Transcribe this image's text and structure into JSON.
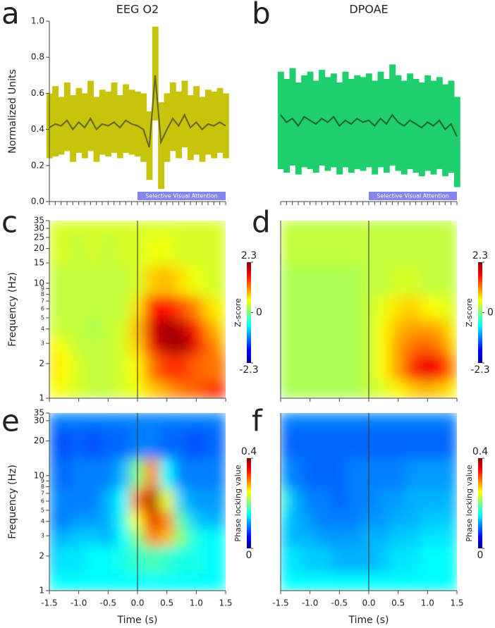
{
  "chart_data": [
    {
      "panel": "a",
      "type": "band-line",
      "title": "EEG O2",
      "ylabel": "Normalized Units",
      "color": "#c8c40c",
      "line_color": "#6a6a20",
      "x": [
        -1.5,
        -1.4,
        -1.3,
        -1.2,
        -1.1,
        -1.0,
        -0.9,
        -0.8,
        -0.7,
        -0.6,
        -0.5,
        -0.4,
        -0.3,
        -0.2,
        -0.1,
        0.0,
        0.1,
        0.2,
        0.3,
        0.4,
        0.5,
        0.6,
        0.7,
        0.8,
        0.9,
        1.0,
        1.1,
        1.2,
        1.3,
        1.4,
        1.5
      ],
      "values": [
        0.41,
        0.43,
        0.42,
        0.45,
        0.4,
        0.44,
        0.41,
        0.46,
        0.4,
        0.43,
        0.42,
        0.44,
        0.41,
        0.45,
        0.43,
        0.42,
        0.4,
        0.3,
        0.7,
        0.33,
        0.4,
        0.46,
        0.42,
        0.48,
        0.41,
        0.44,
        0.4,
        0.43,
        0.42,
        0.44,
        0.42
      ],
      "upper": [
        0.6,
        0.64,
        0.58,
        0.66,
        0.59,
        0.63,
        0.6,
        0.67,
        0.58,
        0.62,
        0.61,
        0.66,
        0.59,
        0.65,
        0.62,
        0.61,
        0.6,
        0.5,
        0.97,
        0.55,
        0.6,
        0.66,
        0.61,
        0.67,
        0.59,
        0.64,
        0.58,
        0.62,
        0.61,
        0.63,
        0.6
      ],
      "lower": [
        0.24,
        0.25,
        0.26,
        0.28,
        0.22,
        0.27,
        0.24,
        0.28,
        0.22,
        0.26,
        0.25,
        0.27,
        0.24,
        0.27,
        0.26,
        0.25,
        0.22,
        0.12,
        0.45,
        0.07,
        0.22,
        0.28,
        0.24,
        0.3,
        0.23,
        0.26,
        0.22,
        0.26,
        0.24,
        0.27,
        0.24
      ],
      "xlim": [
        -1.5,
        1.5
      ],
      "xticks": [
        -1.5,
        -1.4,
        -1.3,
        -1.2,
        -1.1,
        -1.0,
        -0.9,
        -0.8,
        -0.7,
        -0.6,
        -0.5,
        -0.4,
        -0.3,
        -0.2,
        -0.1,
        0.0,
        0.1,
        0.2,
        0.3,
        0.4,
        0.5,
        0.6,
        0.7,
        0.8,
        0.9,
        1.0,
        1.1,
        1.2,
        1.3,
        1.4,
        1.5
      ],
      "xtick_labels": false,
      "ylim": [
        0,
        1
      ],
      "yticks": [
        {
          "value": 0,
          "label": "0.0"
        },
        0.2,
        0.4,
        0.6,
        0.8,
        {
          "value": 1,
          "label": "1.0"
        }
      ],
      "annotation": {
        "text": "Selective Visual Attention",
        "x": [
          0,
          1.5
        ]
      }
    },
    {
      "panel": "b",
      "type": "band-line",
      "title": "DPOAE",
      "color": "#1fcf6e",
      "line_color": "#1a6a35",
      "x": [
        -1.5,
        -1.4,
        -1.3,
        -1.2,
        -1.1,
        -1.0,
        -0.9,
        -0.8,
        -0.7,
        -0.6,
        -0.5,
        -0.4,
        -0.3,
        -0.2,
        -0.1,
        0.0,
        0.1,
        0.2,
        0.3,
        0.4,
        0.5,
        0.6,
        0.7,
        0.8,
        0.9,
        1.0,
        1.1,
        1.2,
        1.3,
        1.4,
        1.5
      ],
      "values": [
        0.48,
        0.44,
        0.46,
        0.42,
        0.47,
        0.45,
        0.43,
        0.46,
        0.44,
        0.47,
        0.42,
        0.45,
        0.43,
        0.46,
        0.44,
        0.45,
        0.42,
        0.46,
        0.43,
        0.48,
        0.44,
        0.42,
        0.45,
        0.43,
        0.41,
        0.44,
        0.42,
        0.45,
        0.4,
        0.43,
        0.36
      ],
      "upper": [
        0.72,
        0.68,
        0.74,
        0.66,
        0.7,
        0.72,
        0.67,
        0.73,
        0.69,
        0.71,
        0.66,
        0.72,
        0.68,
        0.7,
        0.69,
        0.71,
        0.67,
        0.72,
        0.68,
        0.76,
        0.7,
        0.67,
        0.71,
        0.68,
        0.66,
        0.7,
        0.67,
        0.69,
        0.65,
        0.67,
        0.58
      ],
      "lower": [
        0.18,
        0.16,
        0.2,
        0.15,
        0.19,
        0.18,
        0.16,
        0.2,
        0.17,
        0.19,
        0.15,
        0.19,
        0.16,
        0.18,
        0.17,
        0.19,
        0.15,
        0.19,
        0.16,
        0.2,
        0.17,
        0.15,
        0.18,
        0.16,
        0.14,
        0.17,
        0.15,
        0.18,
        0.14,
        0.16,
        0.08
      ],
      "xlim": [
        -1.5,
        1.5
      ],
      "xticks": [
        -1.5,
        -1.4,
        -1.3,
        -1.2,
        -1.1,
        -1.0,
        -0.9,
        -0.8,
        -0.7,
        -0.6,
        -0.5,
        -0.4,
        -0.3,
        -0.2,
        -0.1,
        0.0,
        0.1,
        0.2,
        0.3,
        0.4,
        0.5,
        0.6,
        0.7,
        0.8,
        0.9,
        1.0,
        1.1,
        1.2,
        1.3,
        1.4,
        1.5
      ],
      "xtick_labels": false,
      "ylim": [
        0,
        1
      ],
      "annotation": {
        "text": "Selective Visual Attention",
        "x": [
          0,
          1.5
        ]
      }
    },
    {
      "panel": "c",
      "type": "heatmap",
      "ylabel": "Frequency (Hz)",
      "colorbar_label": "Z-score",
      "x": [
        -1.5,
        -1.25,
        -1.0,
        -0.75,
        -0.5,
        -0.25,
        0.0,
        0.25,
        0.5,
        0.75,
        1.0,
        1.25,
        1.5
      ],
      "y": [
        1,
        2,
        3,
        4,
        6,
        10,
        20,
        35
      ],
      "z": [
        [
          0.6,
          0.5,
          0.4,
          0.3,
          0.3,
          0.4,
          0.5,
          0.8,
          1.0,
          1.2,
          1.3,
          1.5,
          1.6
        ],
        [
          0.7,
          0.6,
          0.4,
          0.3,
          0.3,
          0.4,
          0.6,
          1.2,
          1.5,
          1.5,
          1.3,
          1.2,
          1.2
        ],
        [
          0.6,
          0.5,
          0.3,
          0.3,
          0.3,
          0.4,
          0.8,
          1.8,
          2.1,
          2.2,
          1.8,
          1.2,
          0.9
        ],
        [
          0.4,
          0.3,
          0.3,
          0.2,
          0.3,
          0.4,
          0.9,
          1.9,
          2.2,
          2.0,
          1.6,
          1.0,
          0.7
        ],
        [
          0.3,
          0.3,
          0.3,
          0.3,
          0.3,
          0.3,
          0.7,
          1.6,
          1.7,
          1.4,
          1.1,
          0.7,
          0.5
        ],
        [
          0.3,
          0.3,
          0.3,
          0.3,
          0.3,
          0.3,
          0.4,
          0.8,
          0.9,
          0.7,
          0.5,
          0.4,
          0.4
        ],
        [
          0.4,
          0.4,
          0.3,
          0.4,
          0.3,
          0.4,
          0.4,
          0.5,
          0.5,
          0.4,
          0.4,
          0.4,
          0.4
        ],
        [
          0.4,
          0.4,
          0.4,
          0.4,
          0.4,
          0.4,
          0.4,
          0.4,
          0.4,
          0.4,
          0.4,
          0.4,
          0.4
        ]
      ],
      "xlim": [
        -1.5,
        1.5
      ],
      "xticks": [
        -1.5,
        -1,
        -0.5,
        0,
        0.5,
        1,
        1.5
      ],
      "xtick_labels": false,
      "ylim": [
        1,
        35
      ],
      "log_y": true,
      "yticks": [
        1,
        2,
        3,
        4,
        5,
        6,
        7,
        8,
        9,
        10,
        15,
        20,
        25,
        30,
        35
      ],
      "vline": 0,
      "clim": [
        -2.3,
        2.3
      ],
      "cticks": [
        2.3,
        0,
        -2.3
      ]
    },
    {
      "panel": "d",
      "type": "heatmap",
      "colorbar_label": "Z-score",
      "x": [
        -1.5,
        -1.25,
        -1.0,
        -0.75,
        -0.5,
        -0.25,
        0.0,
        0.25,
        0.5,
        0.75,
        1.0,
        1.25,
        1.5
      ],
      "y": [
        1,
        2,
        3,
        4,
        6,
        10,
        20,
        35
      ],
      "z": [
        [
          0.2,
          0.2,
          0.2,
          0.2,
          0.2,
          0.2,
          0.3,
          0.4,
          0.6,
          0.8,
          0.9,
          0.8,
          0.6
        ],
        [
          0.2,
          0.2,
          0.2,
          0.2,
          0.2,
          0.2,
          0.3,
          0.6,
          1.0,
          1.5,
          1.8,
          1.6,
          1.0
        ],
        [
          0.2,
          0.2,
          0.2,
          0.2,
          0.2,
          0.2,
          0.3,
          0.6,
          1.0,
          1.2,
          1.3,
          1.1,
          0.7
        ],
        [
          0.2,
          0.2,
          0.2,
          0.2,
          0.2,
          0.2,
          0.3,
          0.6,
          0.9,
          1.0,
          1.0,
          0.9,
          0.5
        ],
        [
          0.2,
          0.2,
          0.2,
          0.2,
          0.2,
          0.2,
          0.3,
          0.5,
          0.7,
          0.8,
          0.6,
          0.5,
          0.4
        ],
        [
          0.2,
          0.2,
          0.2,
          0.2,
          0.2,
          0.2,
          0.3,
          0.3,
          0.4,
          0.4,
          0.3,
          0.3,
          0.3
        ],
        [
          0.3,
          0.3,
          0.3,
          0.3,
          0.3,
          0.3,
          0.3,
          0.3,
          0.3,
          0.3,
          0.3,
          0.3,
          0.3
        ],
        [
          0.3,
          0.3,
          0.3,
          0.3,
          0.3,
          0.3,
          0.3,
          0.3,
          0.3,
          0.3,
          0.3,
          0.3,
          0.3
        ]
      ],
      "xlim": [
        -1.5,
        1.5
      ],
      "xticks": [
        -1.5,
        -1,
        -0.5,
        0,
        0.5,
        1,
        1.5
      ],
      "xtick_labels": false,
      "ylim": [
        1,
        35
      ],
      "log_y": true,
      "vline": 0,
      "clim": [
        -2.3,
        2.3
      ],
      "cticks": [
        2.3,
        0,
        -2.3
      ]
    },
    {
      "panel": "e",
      "type": "heatmap",
      "ylabel": "Frequency (Hz)",
      "xlabel": "Time (s)",
      "colorbar_label": "Phase locking value",
      "x": [
        -1.5,
        -1.25,
        -1.0,
        -0.75,
        -0.5,
        -0.25,
        0.0,
        0.25,
        0.5,
        0.75,
        1.0,
        1.25,
        1.5
      ],
      "y": [
        1,
        2,
        3,
        4,
        6,
        10,
        20,
        35
      ],
      "z": [
        [
          0.15,
          0.15,
          0.15,
          0.15,
          0.15,
          0.15,
          0.15,
          0.15,
          0.15,
          0.15,
          0.15,
          0.15,
          0.15
        ],
        [
          0.13,
          0.14,
          0.14,
          0.15,
          0.15,
          0.16,
          0.17,
          0.18,
          0.17,
          0.16,
          0.16,
          0.15,
          0.15
        ],
        [
          0.12,
          0.12,
          0.13,
          0.13,
          0.12,
          0.15,
          0.2,
          0.3,
          0.28,
          0.2,
          0.16,
          0.15,
          0.15
        ],
        [
          0.1,
          0.1,
          0.11,
          0.11,
          0.12,
          0.16,
          0.25,
          0.36,
          0.3,
          0.18,
          0.13,
          0.12,
          0.12
        ],
        [
          0.11,
          0.1,
          0.1,
          0.1,
          0.12,
          0.15,
          0.3,
          0.38,
          0.24,
          0.13,
          0.11,
          0.11,
          0.11
        ],
        [
          0.1,
          0.09,
          0.1,
          0.1,
          0.1,
          0.12,
          0.2,
          0.3,
          0.15,
          0.1,
          0.1,
          0.1,
          0.1
        ],
        [
          0.09,
          0.08,
          0.09,
          0.08,
          0.09,
          0.09,
          0.1,
          0.1,
          0.09,
          0.09,
          0.08,
          0.09,
          0.09
        ],
        [
          0.1,
          0.1,
          0.1,
          0.1,
          0.1,
          0.1,
          0.1,
          0.1,
          0.1,
          0.1,
          0.1,
          0.1,
          0.1
        ]
      ],
      "xlim": [
        -1.5,
        1.5
      ],
      "xticks": [
        -1.5,
        {
          "value": -1,
          "label": "-1.0"
        },
        -0.5,
        {
          "value": 0,
          "label": "0.0"
        },
        0.5,
        {
          "value": 1,
          "label": "1.0"
        },
        1.5
      ],
      "xtick_labels": true,
      "ylim": [
        1,
        35
      ],
      "log_y": true,
      "yticks": [
        1,
        2,
        3,
        4,
        5,
        6,
        7,
        8,
        9,
        10,
        20,
        30,
        35
      ],
      "vline": 0,
      "clim": [
        0,
        0.4
      ],
      "cticks": [
        0.4,
        0
      ]
    },
    {
      "panel": "f",
      "type": "heatmap",
      "xlabel": "Time (s)",
      "colorbar_label": "Phase locking value",
      "x": [
        -1.5,
        -1.25,
        -1.0,
        -0.75,
        -0.5,
        -0.25,
        0.0,
        0.25,
        0.5,
        0.75,
        1.0,
        1.25,
        1.5
      ],
      "y": [
        1,
        2,
        3,
        4,
        6,
        10,
        20,
        35
      ],
      "z": [
        [
          0.15,
          0.15,
          0.15,
          0.15,
          0.15,
          0.15,
          0.15,
          0.15,
          0.15,
          0.15,
          0.15,
          0.15,
          0.15
        ],
        [
          0.14,
          0.14,
          0.13,
          0.13,
          0.12,
          0.12,
          0.12,
          0.13,
          0.14,
          0.14,
          0.15,
          0.15,
          0.15
        ],
        [
          0.13,
          0.12,
          0.12,
          0.11,
          0.11,
          0.11,
          0.12,
          0.12,
          0.13,
          0.13,
          0.14,
          0.14,
          0.14
        ],
        [
          0.14,
          0.12,
          0.11,
          0.1,
          0.1,
          0.1,
          0.11,
          0.11,
          0.12,
          0.12,
          0.13,
          0.13,
          0.13
        ],
        [
          0.17,
          0.12,
          0.1,
          0.1,
          0.09,
          0.1,
          0.1,
          0.11,
          0.11,
          0.12,
          0.12,
          0.12,
          0.12
        ],
        [
          0.11,
          0.1,
          0.09,
          0.09,
          0.09,
          0.1,
          0.1,
          0.1,
          0.1,
          0.11,
          0.11,
          0.11,
          0.11
        ],
        [
          0.09,
          0.09,
          0.09,
          0.09,
          0.09,
          0.09,
          0.09,
          0.09,
          0.09,
          0.09,
          0.09,
          0.09,
          0.09
        ],
        [
          0.1,
          0.1,
          0.1,
          0.1,
          0.1,
          0.1,
          0.1,
          0.1,
          0.1,
          0.1,
          0.1,
          0.1,
          0.1
        ]
      ],
      "xlim": [
        -1.5,
        1.5
      ],
      "xticks": [
        -1.5,
        {
          "value": -1,
          "label": "-1.0"
        },
        -0.5,
        {
          "value": 0,
          "label": "0.0"
        },
        0.5,
        {
          "value": 1,
          "label": "1.0"
        },
        1.5
      ],
      "xtick_labels": true,
      "ylim": [
        1,
        35
      ],
      "log_y": true,
      "vline": 0,
      "clim": [
        0,
        0.4
      ],
      "cticks": [
        0.4,
        0
      ]
    }
  ]
}
